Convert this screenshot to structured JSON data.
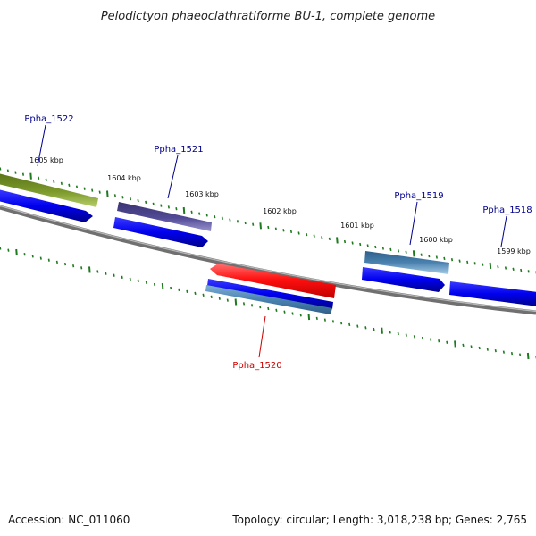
{
  "title": "Pelodictyon phaeoclathratiforme BU-1, complete genome",
  "footer": {
    "accession": "Accession: NC_011060",
    "summary": "Topology: circular; Length: 3,018,238 bp; Genes: 2,765"
  },
  "kbp_labels": [
    "1605 kbp",
    "1604 kbp",
    "1603 kbp",
    "1602 kbp",
    "1601 kbp",
    "1600 kbp",
    "1599 kbp"
  ],
  "genes": [
    {
      "label": "Ppha_1522",
      "strand": "top"
    },
    {
      "label": "Ppha_1521",
      "strand": "top"
    },
    {
      "label": "Ppha_1520",
      "strand": "bottom"
    },
    {
      "label": "Ppha_1519",
      "strand": "top"
    },
    {
      "label": "Ppha_1518",
      "strand": "top"
    }
  ],
  "colors": {
    "backbone": "#808080",
    "tick": "#1e7a1e",
    "cds_blue": "#0000ee",
    "gene_olive": "#6f8c24",
    "gene_purple": "#4a4488",
    "gene_red": "#ee0000",
    "gene_steel": "#4a82b0",
    "label_blue": "#00008b",
    "label_red": "#cc0000"
  }
}
